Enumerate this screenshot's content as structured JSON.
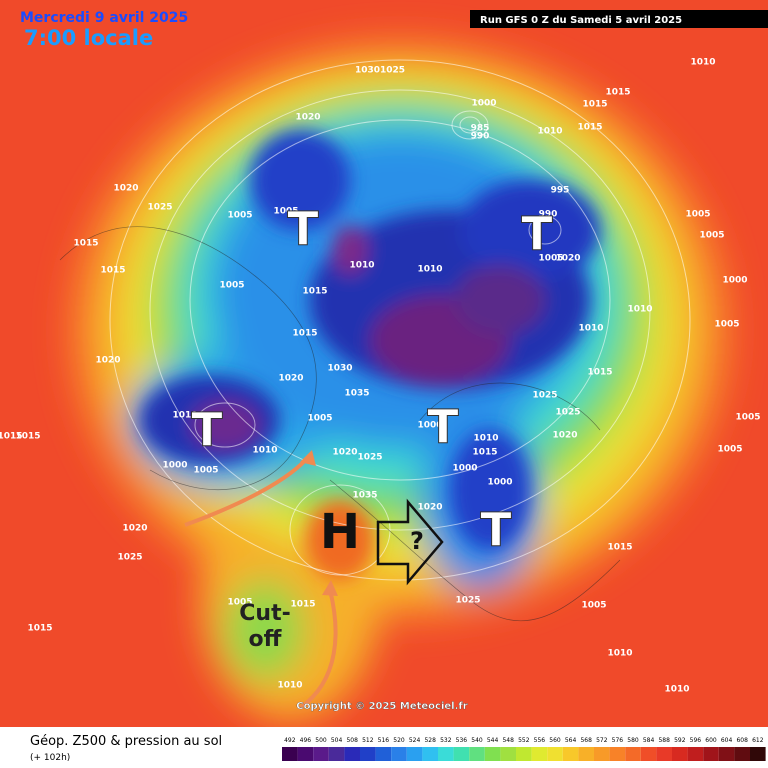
{
  "header": {
    "date": "Mercredi 9 avril 2025",
    "time": "7:00 locale",
    "run": "Run GFS 0 Z du Samedi 5 avril 2025"
  },
  "annotations": {
    "troughs": [
      "T",
      "T",
      "T",
      "T",
      "T"
    ],
    "high": "H",
    "question": "?",
    "cutoff": "Cut-\noff"
  },
  "pressure_labels": [
    "10301025",
    "1010",
    "1015",
    "1015",
    "1000",
    "985",
    "990",
    "1010",
    "1015",
    "1020",
    "1005",
    "1005",
    "1020",
    "1025",
    "1015",
    "1015",
    "1010",
    "1005",
    "1015",
    "995",
    "990",
    "1005",
    "1005",
    "1005",
    "1010",
    "1010",
    "1010",
    "1005",
    "1020",
    "1015",
    "1015",
    "1030",
    "1035",
    "1020",
    "1025",
    "1005",
    "1010",
    "1005",
    "1000",
    "1000",
    "1000",
    "1000",
    "1010",
    "1015",
    "1020",
    "1025",
    "1025",
    "1020",
    "1020",
    "1035",
    "1020",
    "1005",
    "1025",
    "1015",
    "1015",
    "1005",
    "1010",
    "1010",
    "1015",
    "1000",
    "1005",
    "1010",
    "1020",
    "1025",
    "1005",
    "1015",
    "1015",
    "1010"
  ],
  "copyright": "Copyright © 2025 Meteociel.fr",
  "legend": {
    "title": "Géop. Z500 & pression au sol",
    "subtitle": "(+ 102h)",
    "scale": [
      "492",
      "496",
      "500",
      "504",
      "508",
      "512",
      "516",
      "520",
      "524",
      "528",
      "532",
      "536",
      "540",
      "544",
      "548",
      "552",
      "556",
      "560",
      "564",
      "568",
      "572",
      "576",
      "580",
      "584",
      "588",
      "592",
      "596",
      "600",
      "604",
      "608",
      "612"
    ]
  }
}
